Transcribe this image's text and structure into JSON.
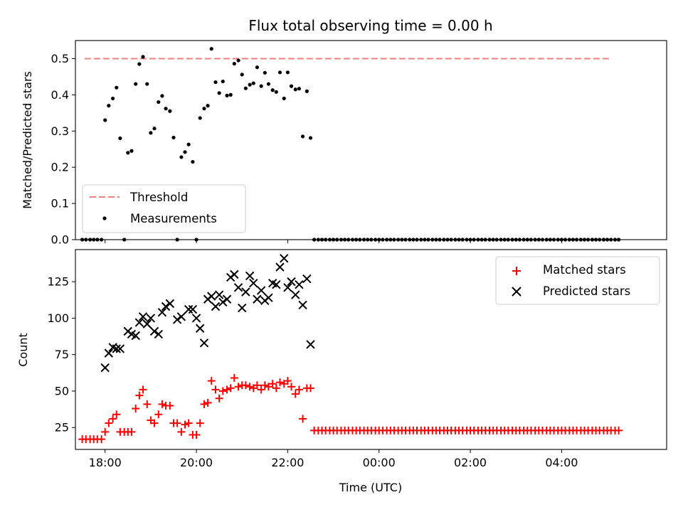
{
  "chart_data": [
    {
      "type": "scatter",
      "title": "Flux total observing time = 0.00 h",
      "xlabel": "",
      "ylabel": "Matched/Predicted stars",
      "ylim": [
        0.0,
        0.55
      ],
      "xlim": [
        -0.65,
        12.3
      ],
      "x_unit": "hours after 18:00 UTC",
      "yticks": [
        0.0,
        0.1,
        0.2,
        0.3,
        0.4,
        0.5
      ],
      "ytick_labels": [
        "0.0",
        "0.1",
        "0.2",
        "0.3",
        "0.4",
        "0.5"
      ],
      "legend": {
        "position": "lower-left",
        "entries": [
          "Threshold",
          "Measurements"
        ]
      },
      "series": [
        {
          "name": "Threshold",
          "kind": "dashed-line",
          "color": "#f07f7f",
          "x": [
            -0.45,
            11.1
          ],
          "y": [
            0.5,
            0.5
          ]
        },
        {
          "name": "Measurements",
          "kind": "points",
          "color": "#000000",
          "x": [
            -0.5,
            -0.42,
            -0.33,
            -0.25,
            -0.17,
            -0.08,
            0.0,
            0.08,
            0.17,
            0.25,
            0.33,
            0.42,
            0.5,
            0.58,
            0.67,
            0.75,
            0.83,
            0.92,
            1.0,
            1.08,
            1.17,
            1.25,
            1.33,
            1.42,
            1.5,
            1.58,
            1.67,
            1.75,
            1.83,
            1.92,
            2.0,
            2.08,
            2.17,
            2.25,
            2.33,
            2.42,
            2.5,
            2.58,
            2.67,
            2.75,
            2.83,
            2.92,
            3.0,
            3.08,
            3.17,
            3.25,
            3.33,
            3.42,
            3.5,
            3.58,
            3.67,
            3.75,
            3.83,
            3.92,
            4.0,
            4.08,
            4.17,
            4.25,
            4.33,
            4.42,
            4.5,
            4.58,
            4.67,
            4.75,
            4.83,
            4.92,
            5.0,
            5.08,
            5.17,
            5.25,
            5.33,
            5.42,
            5.5,
            5.58,
            5.67,
            5.75,
            5.83,
            5.92,
            6.0,
            6.08,
            6.17,
            6.25,
            6.33,
            6.42,
            6.5,
            6.58,
            6.67,
            6.75,
            6.83,
            6.92,
            7.0,
            7.08,
            7.17,
            7.25,
            7.33,
            7.42,
            7.5,
            7.58,
            7.67,
            7.75,
            7.83,
            7.92,
            8.0,
            8.08,
            8.17,
            8.25,
            8.33,
            8.42,
            8.5,
            8.58,
            8.67,
            8.75,
            8.83,
            8.92,
            9.0,
            9.08,
            9.17,
            9.25,
            9.33,
            9.42,
            9.5,
            9.58,
            9.67,
            9.75,
            9.83,
            9.92,
            10.0,
            10.08,
            10.17,
            10.25,
            10.33,
            10.42,
            10.5,
            10.58,
            10.67,
            10.75,
            10.83,
            10.92,
            11.0,
            11.08,
            11.17,
            11.25
          ],
          "y": [
            0.0,
            0.0,
            0.0,
            0.0,
            0.0,
            0.0,
            0.33,
            0.37,
            0.39,
            0.42,
            0.28,
            0.0,
            0.24,
            0.245,
            0.43,
            0.485,
            0.505,
            0.43,
            0.295,
            0.307,
            0.38,
            0.397,
            0.362,
            0.355,
            0.282,
            0.0,
            0.228,
            0.242,
            0.263,
            0.215,
            0.0,
            0.336,
            0.362,
            0.37,
            0.527,
            0.435,
            0.405,
            0.437,
            0.398,
            0.4,
            0.486,
            0.495,
            0.456,
            0.418,
            0.428,
            0.432,
            0.476,
            0.424,
            0.461,
            0.43,
            0.413,
            0.408,
            0.462,
            0.39,
            0.462,
            0.424,
            0.415,
            0.417,
            0.285,
            0.41,
            0.281,
            0.0,
            0.0,
            0.0,
            0.0,
            0.0,
            0.0,
            0.0,
            0.0,
            0.0,
            0.0,
            0.0,
            0.0,
            0.0,
            0.0,
            0.0,
            0.0,
            0.0,
            0.0,
            0.0,
            0.0,
            0.0,
            0.0,
            0.0,
            0.0,
            0.0,
            0.0,
            0.0,
            0.0,
            0.0,
            0.0,
            0.0,
            0.0,
            0.0,
            0.0,
            0.0,
            0.0,
            0.0,
            0.0,
            0.0,
            0.0,
            0.0,
            0.0,
            0.0,
            0.0,
            0.0,
            0.0,
            0.0,
            0.0,
            0.0,
            0.0,
            0.0,
            0.0,
            0.0,
            0.0,
            0.0,
            0.0,
            0.0,
            0.0,
            0.0,
            0.0,
            0.0,
            0.0,
            0.0,
            0.0,
            0.0,
            0.0,
            0.0,
            0.0,
            0.0,
            0.0,
            0.0,
            0.0,
            0.0,
            0.0,
            0.0,
            0.0,
            0.0,
            0.0,
            0.0,
            0.0,
            0.0
          ]
        }
      ]
    },
    {
      "type": "scatter",
      "title": "",
      "xlabel": "Time (UTC)",
      "ylabel": "Count",
      "ylim": [
        10,
        147
      ],
      "xlim": [
        -0.65,
        12.3
      ],
      "x_unit": "hours after 18:00 UTC",
      "xticks": [
        0,
        2,
        4,
        6,
        8,
        10
      ],
      "xtick_labels": [
        "18:00",
        "20:00",
        "22:00",
        "00:00",
        "02:00",
        "04:00"
      ],
      "yticks": [
        25,
        50,
        75,
        100,
        125
      ],
      "ytick_labels": [
        "25",
        "50",
        "75",
        "100",
        "125"
      ],
      "legend": {
        "position": "top-right",
        "entries": [
          "Matched stars",
          "Predicted stars"
        ]
      },
      "series": [
        {
          "name": "Matched stars",
          "marker": "plus",
          "color": "#ff0000",
          "x": [
            -0.5,
            -0.42,
            -0.33,
            -0.25,
            -0.17,
            -0.08,
            0.0,
            0.08,
            0.17,
            0.25,
            0.33,
            0.42,
            0.5,
            0.58,
            0.67,
            0.75,
            0.83,
            0.92,
            1.0,
            1.08,
            1.17,
            1.25,
            1.33,
            1.42,
            1.5,
            1.58,
            1.67,
            1.75,
            1.83,
            1.92,
            2.0,
            2.08,
            2.17,
            2.25,
            2.33,
            2.42,
            2.5,
            2.58,
            2.67,
            2.75,
            2.83,
            2.92,
            3.0,
            3.08,
            3.17,
            3.25,
            3.33,
            3.42,
            3.5,
            3.58,
            3.67,
            3.75,
            3.83,
            3.92,
            4.0,
            4.08,
            4.17,
            4.25,
            4.33,
            4.42,
            4.5,
            4.58,
            4.67,
            4.75,
            4.83,
            4.92,
            5.0,
            5.08,
            5.17,
            5.25,
            5.33,
            5.42,
            5.5,
            5.58,
            5.67,
            5.75,
            5.83,
            5.92,
            6.0,
            6.08,
            6.17,
            6.25,
            6.33,
            6.42,
            6.5,
            6.58,
            6.67,
            6.75,
            6.83,
            6.92,
            7.0,
            7.08,
            7.17,
            7.25,
            7.33,
            7.42,
            7.5,
            7.58,
            7.67,
            7.75,
            7.83,
            7.92,
            8.0,
            8.08,
            8.17,
            8.25,
            8.33,
            8.42,
            8.5,
            8.58,
            8.67,
            8.75,
            8.83,
            8.92,
            9.0,
            9.08,
            9.17,
            9.25,
            9.33,
            9.42,
            9.5,
            9.58,
            9.67,
            9.75,
            9.83,
            9.92,
            10.0,
            10.08,
            10.17,
            10.25,
            10.33,
            10.42,
            10.5,
            10.58,
            10.67,
            10.75,
            10.83,
            10.92,
            11.0,
            11.08,
            11.17,
            11.25
          ],
          "y": [
            17,
            17,
            17,
            17,
            17,
            17,
            22,
            28,
            31,
            34,
            22,
            22,
            22,
            22,
            38,
            47,
            51,
            41,
            30,
            28,
            34,
            41,
            40,
            40,
            28,
            28,
            22,
            27,
            28,
            20,
            20,
            28,
            41,
            42,
            57,
            51,
            45,
            50,
            51,
            52,
            59,
            53,
            54,
            54,
            53,
            52,
            54,
            51,
            54,
            53,
            55,
            52,
            56,
            55,
            57,
            53,
            48,
            51,
            31,
            52,
            52,
            23,
            23,
            23,
            23,
            23,
            23,
            23,
            23,
            23,
            23,
            23,
            23,
            23,
            23,
            23,
            23,
            23,
            23,
            23,
            23,
            23,
            23,
            23,
            23,
            23,
            23,
            23,
            23,
            23,
            23,
            23,
            23,
            23,
            23,
            23,
            23,
            23,
            23,
            23,
            23,
            23,
            23,
            23,
            23,
            23,
            23,
            23,
            23,
            23,
            23,
            23,
            23,
            23,
            23,
            23,
            23,
            23,
            23,
            23,
            23,
            23,
            23,
            23,
            23,
            23,
            23,
            23,
            23,
            23,
            23,
            23,
            23,
            23,
            23,
            23,
            23,
            23,
            23,
            23,
            23,
            23
          ]
        },
        {
          "name": "Predicted stars",
          "marker": "x",
          "color": "#000000",
          "x": [
            0.0,
            0.08,
            0.17,
            0.25,
            0.33,
            0.5,
            0.58,
            0.67,
            0.75,
            0.83,
            0.92,
            1.0,
            1.08,
            1.17,
            1.25,
            1.33,
            1.42,
            1.58,
            1.67,
            1.83,
            1.92,
            2.0,
            2.08,
            2.17,
            2.25,
            2.33,
            2.42,
            2.5,
            2.58,
            2.67,
            2.75,
            2.83,
            2.92,
            3.0,
            3.08,
            3.17,
            3.25,
            3.33,
            3.42,
            3.5,
            3.58,
            3.67,
            3.75,
            3.83,
            3.92,
            4.0,
            4.08,
            4.17,
            4.25,
            4.33,
            4.42,
            4.5
          ],
          "y": [
            66,
            76,
            80,
            79,
            79,
            91,
            89,
            88,
            97,
            101,
            96,
            100,
            91,
            89,
            104,
            108,
            110,
            99,
            101,
            106,
            106,
            100,
            93,
            83,
            113,
            115,
            108,
            116,
            111,
            113,
            128,
            130,
            121,
            107,
            118,
            129,
            124,
            113,
            119,
            112,
            114,
            124,
            123,
            135,
            141,
            121,
            125,
            116,
            123,
            109,
            127,
            82
          ]
        }
      ]
    }
  ]
}
